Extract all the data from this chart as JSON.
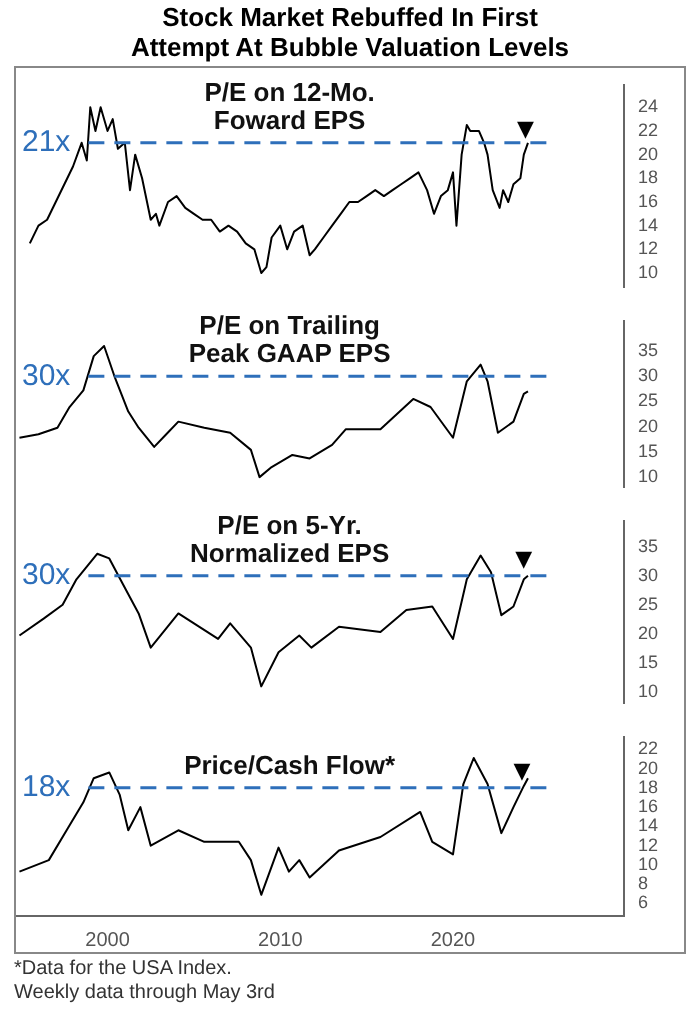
{
  "chart_data": [
    {
      "type": "line",
      "title": "Stock Market Rebuffed In First Attempt At Bubble Valuation Levels",
      "annotations": [
        "P/E on 12-Mo.\nFoward EPS",
        {
          "text": "▼",
          "x": 2024.2,
          "y": 21
        }
      ],
      "x": [
        1995.5,
        1996,
        1996.5,
        1997,
        1997.5,
        1998,
        1998.5,
        1998.8,
        1999,
        1999.3,
        1999.6,
        2000,
        2000.3,
        2000.6,
        2001,
        2001.3,
        2001.6,
        2002,
        2002.5,
        2002.8,
        2003,
        2003.5,
        2004,
        2004.5,
        2005,
        2005.5,
        2006,
        2006.5,
        2007,
        2007.5,
        2008,
        2008.5,
        2008.9,
        2009.2,
        2009.5,
        2010,
        2010.4,
        2010.8,
        2011.3,
        2011.7,
        2012,
        2012.5,
        2013,
        2013.5,
        2014,
        2014.5,
        2015,
        2015.5,
        2016,
        2016.5,
        2017,
        2017.5,
        2018,
        2018.5,
        2018.9,
        2019.3,
        2019.7,
        2020,
        2020.2,
        2020.5,
        2020.8,
        2021,
        2021.5,
        2021.8,
        2022,
        2022.3,
        2022.7,
        2022.9,
        2023.2,
        2023.5,
        2023.9,
        2024.1,
        2024.34
      ],
      "series": [
        {
          "color": "#000000",
          "values": [
            12.5,
            14,
            14.5,
            16,
            17.5,
            19,
            21,
            19.5,
            24,
            22,
            24,
            22,
            23,
            20.5,
            21,
            17,
            20,
            18,
            14.5,
            15,
            14,
            16,
            16.5,
            15.5,
            15,
            14.5,
            14.5,
            13.5,
            14,
            13.5,
            12.5,
            12,
            10,
            10.5,
            13,
            14,
            12,
            13.5,
            14,
            11.5,
            12,
            13,
            14,
            15,
            16,
            16,
            16.5,
            17,
            16.5,
            17,
            17.5,
            18,
            18.5,
            17,
            15,
            16.5,
            17,
            18.5,
            14,
            20,
            22.5,
            22,
            22,
            21,
            20,
            17,
            15.5,
            17,
            16,
            17.5,
            18,
            20,
            21
          ]
        }
      ],
      "xlim": [
        1994.7,
        2029.9
      ],
      "xticks": [
        2000,
        2010,
        2020
      ],
      "ylim": [
        8.8,
        25.9
      ],
      "yticks": [
        10,
        12,
        14,
        16,
        18,
        20,
        22,
        24
      ],
      "tick_labels": "y",
      "ref_lines": [
        {
          "axis": "y",
          "value": 21,
          "label": "21x",
          "color": "#2e6fba",
          "line_style": "dashed"
        }
      ]
    },
    {
      "type": "line",
      "annotations": [
        "P/E on Trailing\nPeak GAAP EPS"
      ],
      "x": [
        1994.9,
        1996,
        1997.1,
        1997.8,
        1998.6,
        1999.2,
        1999.8,
        2000.4,
        2001.2,
        2001.8,
        2002.7,
        2003.4,
        2004.1,
        2005.6,
        2007.1,
        2008.3,
        2008.8,
        2009.5,
        2010.7,
        2011.7,
        2013,
        2013.8,
        2015.8,
        2017.7,
        2018.7,
        2020,
        2020.8,
        2021.6,
        2022,
        2022.6,
        2023.5,
        2024.1,
        2024.34
      ],
      "series": [
        {
          "color": "#000000",
          "values": [
            17.8,
            18.5,
            19.8,
            23.9,
            27.2,
            34,
            36,
            30,
            23,
            19.8,
            16,
            18.5,
            21,
            19.8,
            18.8,
            15.4,
            10,
            12,
            14.4,
            13.7,
            16.4,
            19.5,
            19.5,
            25.5,
            23.9,
            17.8,
            29,
            32.3,
            29,
            18.8,
            21,
            26.5,
            27
          ]
        }
      ],
      "xlim": [
        1994.7,
        2029.9
      ],
      "xticks": [
        2000,
        2010,
        2020
      ],
      "ylim": [
        8,
        41
      ],
      "yticks": [
        10,
        15,
        20,
        25,
        30,
        35
      ],
      "tick_labels": "y",
      "ref_lines": [
        {
          "axis": "y",
          "value": 30,
          "label": "30x",
          "color": "#2e6fba",
          "line_style": "dashed"
        }
      ]
    },
    {
      "type": "line",
      "annotations": [
        "P/E on 5-Yr.\nNormalized EPS",
        {
          "text": "▼",
          "x": 2024.1,
          "y": 30.5
        }
      ],
      "x": [
        1994.9,
        1996.3,
        1997.4,
        1998.2,
        1999.4,
        2000.1,
        2000.9,
        2001.8,
        2002.5,
        2004.1,
        2006.4,
        2007.1,
        2008.3,
        2008.9,
        2009.9,
        2011.1,
        2011.8,
        2013.4,
        2015.8,
        2017.3,
        2018.8,
        2020,
        2020.8,
        2021.6,
        2022.2,
        2022.8,
        2023.5,
        2024.1,
        2024.34
      ],
      "series": [
        {
          "color": "#000000",
          "values": [
            19.7,
            22.6,
            25,
            29.4,
            33.8,
            33,
            28.5,
            23.5,
            17.6,
            23.5,
            19.1,
            21.8,
            17.6,
            10.9,
            16.8,
            19.7,
            17.6,
            21.2,
            20.3,
            24.1,
            24.7,
            19.1,
            29.4,
            33.5,
            30.6,
            23.2,
            24.7,
            29.4,
            30
          ]
        }
      ],
      "xlim": [
        1994.7,
        2029.9
      ],
      "xticks": [
        2000,
        2010,
        2020
      ],
      "ylim": [
        8,
        39.5
      ],
      "yticks": [
        10,
        15,
        20,
        25,
        30,
        35
      ],
      "tick_labels": "y",
      "ref_lines": [
        {
          "axis": "y",
          "value": 30,
          "label": "30x",
          "color": "#2e6fba",
          "line_style": "dashed"
        }
      ]
    },
    {
      "type": "line",
      "annotations": [
        "Price/Cash Flow*",
        {
          "text": "▼",
          "x": 2024,
          "y": 18.5
        },
        "*Data for the USA Index.",
        "Weekly data through May 3rd"
      ],
      "x": [
        1994.9,
        1996.6,
        1997.7,
        1998.6,
        1999.2,
        2000.1,
        2000.7,
        2001.2,
        2001.9,
        2002.5,
        2004.1,
        2005.6,
        2007.6,
        2008.3,
        2008.9,
        2009.9,
        2010.5,
        2011.1,
        2011.7,
        2013.4,
        2015.8,
        2018.1,
        2018.8,
        2020,
        2020.6,
        2021.2,
        2022,
        2022.8,
        2023.5,
        2024.1,
        2024.34
      ],
      "series": [
        {
          "color": "#000000",
          "values": [
            9.3,
            10.5,
            13.8,
            16.5,
            19,
            19.6,
            17.3,
            13.6,
            16,
            12,
            13.6,
            12.4,
            12.4,
            10.5,
            6.9,
            11.8,
            9.3,
            10.5,
            8.7,
            11.5,
            12.9,
            15.5,
            12.4,
            11.1,
            18.4,
            21.1,
            18.4,
            13.3,
            16,
            18.2,
            19
          ]
        }
      ],
      "xlim": [
        1994.7,
        2029.9
      ],
      "xticks": [
        2000,
        2010,
        2020
      ],
      "ylim": [
        4.7,
        23.3
      ],
      "yticks": [
        6,
        8,
        10,
        12,
        14,
        16,
        18,
        20,
        22
      ],
      "ref_lines": [
        {
          "axis": "y",
          "value": 18,
          "label": "18x",
          "color": "#2e6fba",
          "line_style": "dashed"
        }
      ]
    }
  ]
}
